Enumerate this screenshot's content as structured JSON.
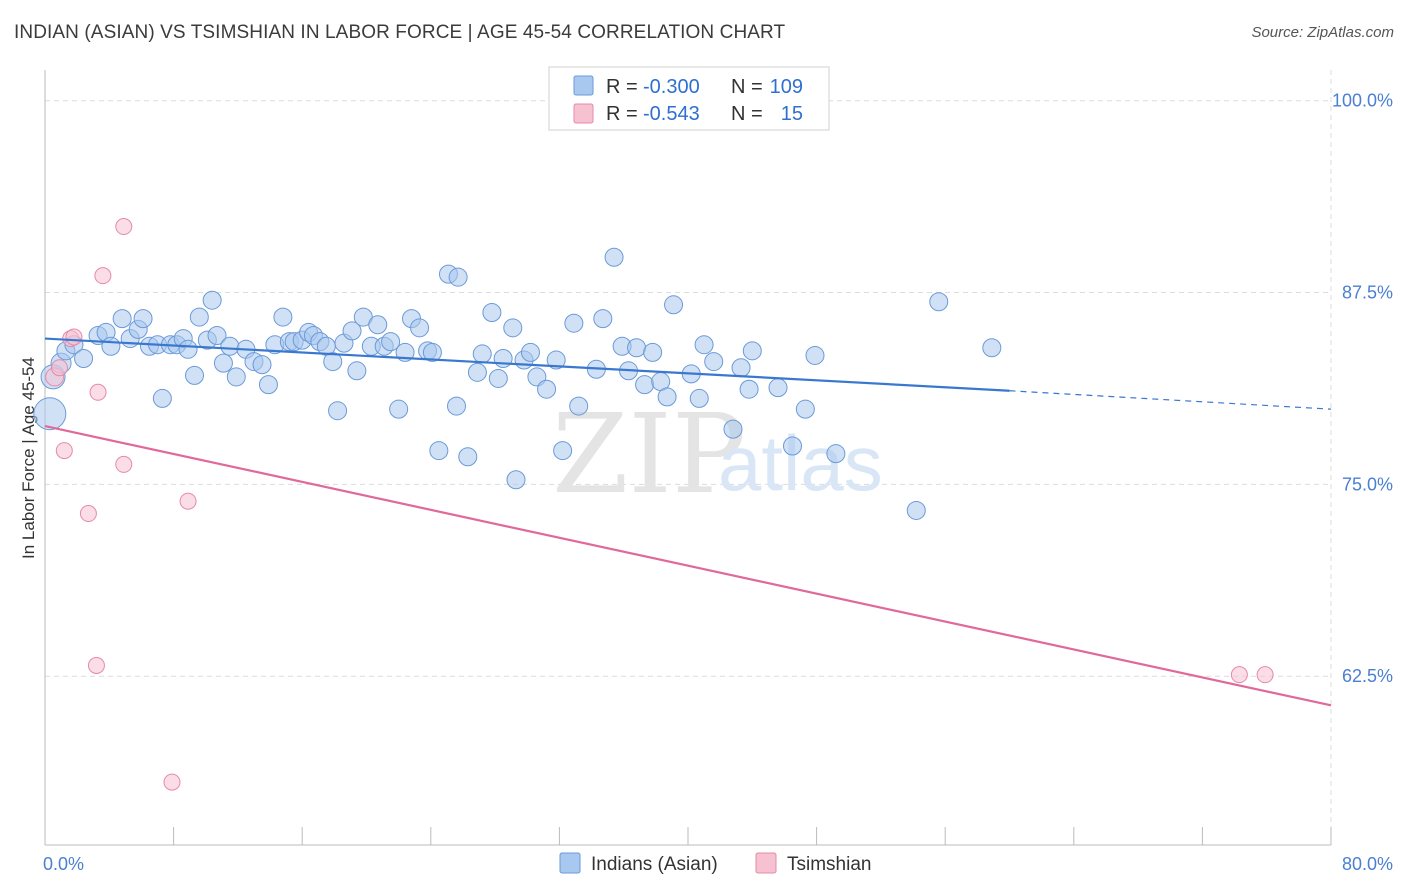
{
  "title": "INDIAN (ASIAN) VS TSIMSHIAN IN LABOR FORCE | AGE 45-54 CORRELATION CHART",
  "source": "Source: ZipAtlas.com",
  "colors": {
    "blue_fill": "#a9c8ef",
    "blue_stroke": "#6b9ad8",
    "blue_line": "#3a78d0",
    "pink_fill": "#f6c1d1",
    "pink_stroke": "#e58aa8",
    "pink_line": "#e0699a",
    "grid": "#dcdcdc",
    "tick_text": "#4a7fd1"
  },
  "legend": {
    "row1": {
      "r_label": "R = ",
      "r_value": "-0.300",
      "n_label": "N = ",
      "n_value": "109"
    },
    "row2": {
      "r_label": "R = ",
      "r_value": "-0.543",
      "n_label": "N = ",
      "n_value": "15"
    }
  },
  "watermark": {
    "zip": "ZIP",
    "atlas": "atlas"
  },
  "chart_data": {
    "type": "scatter",
    "title": "INDIAN (ASIAN) VS TSIMSHIAN IN LABOR FORCE | AGE 45-54 CORRELATION CHART",
    "xlabel": "",
    "ylabel": "In Labor Force | Age 45-54",
    "xlim": [
      0,
      80
    ],
    "ylim": [
      51.5,
      102
    ],
    "x_tick_labels": [
      {
        "value": 0,
        "label": "0.0%"
      },
      {
        "value": 80,
        "label": "80.0%"
      }
    ],
    "x_minor_ticks": [
      8,
      16,
      24,
      32,
      40,
      48,
      56,
      64,
      72,
      80
    ],
    "y_ticks": [
      {
        "value": 100,
        "label": "100.0%"
      },
      {
        "value": 87.5,
        "label": "87.5%"
      },
      {
        "value": 75,
        "label": "75.0%"
      },
      {
        "value": 62.5,
        "label": "62.5%"
      }
    ],
    "grid": true,
    "legend_position": "top-center",
    "series": [
      {
        "name": "Indians (Asian)",
        "color": "blue",
        "trend": {
          "x1": 0,
          "y1": 84.5,
          "x2": 60,
          "y2": 81.1,
          "dash_to_x": 80,
          "dash_to_y": 79.9
        },
        "points": [
          [
            0.3,
            79.6,
            16
          ],
          [
            0.5,
            82.0,
            12
          ],
          [
            1.0,
            82.9,
            10
          ],
          [
            1.3,
            83.7,
            9
          ],
          [
            1.8,
            84.1,
            9
          ],
          [
            2.4,
            83.2,
            9
          ],
          [
            3.3,
            84.7,
            9
          ],
          [
            3.8,
            84.9,
            9
          ],
          [
            4.1,
            84.0,
            9
          ],
          [
            4.8,
            85.8,
            9
          ],
          [
            5.3,
            84.5,
            9
          ],
          [
            5.8,
            85.1,
            9
          ],
          [
            6.1,
            85.8,
            9
          ],
          [
            6.5,
            84.0,
            9
          ],
          [
            7.0,
            84.1,
            9
          ],
          [
            7.3,
            80.6,
            9
          ],
          [
            7.8,
            84.1,
            9
          ],
          [
            8.2,
            84.1,
            9
          ],
          [
            8.6,
            84.5,
            9
          ],
          [
            8.9,
            83.8,
            9
          ],
          [
            9.3,
            82.1,
            9
          ],
          [
            9.6,
            85.9,
            9
          ],
          [
            10.1,
            84.4,
            9
          ],
          [
            10.4,
            87.0,
            9
          ],
          [
            10.7,
            84.7,
            9
          ],
          [
            11.1,
            82.9,
            9
          ],
          [
            11.5,
            84.0,
            9
          ],
          [
            11.9,
            82.0,
            9
          ],
          [
            12.5,
            83.8,
            9
          ],
          [
            13.0,
            83.0,
            9
          ],
          [
            13.5,
            82.8,
            9
          ],
          [
            13.9,
            81.5,
            9
          ],
          [
            14.3,
            84.1,
            9
          ],
          [
            14.8,
            85.9,
            9
          ],
          [
            15.2,
            84.3,
            9
          ],
          [
            15.5,
            84.3,
            9
          ],
          [
            16.0,
            84.4,
            9
          ],
          [
            16.4,
            84.9,
            9
          ],
          [
            16.7,
            84.7,
            9
          ],
          [
            17.1,
            84.3,
            9
          ],
          [
            17.5,
            84.0,
            9
          ],
          [
            17.9,
            83.0,
            9
          ],
          [
            18.2,
            79.8,
            9
          ],
          [
            18.6,
            84.2,
            9
          ],
          [
            19.1,
            85.0,
            9
          ],
          [
            19.4,
            82.4,
            9
          ],
          [
            19.8,
            85.9,
            9
          ],
          [
            20.3,
            84.0,
            9
          ],
          [
            20.7,
            85.4,
            9
          ],
          [
            21.1,
            84.0,
            9
          ],
          [
            21.5,
            84.3,
            9
          ],
          [
            22.0,
            79.9,
            9
          ],
          [
            22.4,
            83.6,
            9
          ],
          [
            22.8,
            85.8,
            9
          ],
          [
            23.3,
            85.2,
            9
          ],
          [
            23.8,
            83.7,
            9
          ],
          [
            24.1,
            83.6,
            9
          ],
          [
            24.5,
            77.2,
            9
          ],
          [
            25.1,
            88.7,
            9
          ],
          [
            25.6,
            80.1,
            9
          ],
          [
            25.7,
            88.5,
            9
          ],
          [
            26.3,
            76.8,
            9
          ],
          [
            26.9,
            82.3,
            9
          ],
          [
            27.2,
            83.5,
            9
          ],
          [
            27.8,
            86.2,
            9
          ],
          [
            28.2,
            81.9,
            9
          ],
          [
            28.5,
            83.2,
            9
          ],
          [
            29.1,
            85.2,
            9
          ],
          [
            29.3,
            75.3,
            9
          ],
          [
            29.8,
            83.1,
            9
          ],
          [
            30.2,
            83.6,
            9
          ],
          [
            30.6,
            82.0,
            9
          ],
          [
            31.2,
            81.2,
            9
          ],
          [
            31.8,
            83.1,
            9
          ],
          [
            32.2,
            77.2,
            9
          ],
          [
            32.9,
            85.5,
            9
          ],
          [
            33.2,
            80.1,
            9
          ],
          [
            34.3,
            82.5,
            9
          ],
          [
            34.7,
            85.8,
            9
          ],
          [
            35.4,
            89.8,
            9
          ],
          [
            35.9,
            84.0,
            9
          ],
          [
            36.3,
            82.4,
            9
          ],
          [
            36.8,
            83.9,
            9
          ],
          [
            37.3,
            81.5,
            9
          ],
          [
            37.8,
            83.6,
            9
          ],
          [
            38.3,
            81.7,
            9
          ],
          [
            38.7,
            80.7,
            9
          ],
          [
            39.1,
            86.7,
            9
          ],
          [
            40.2,
            82.2,
            9
          ],
          [
            40.7,
            80.6,
            9
          ],
          [
            41.0,
            84.1,
            9
          ],
          [
            41.6,
            83.0,
            9
          ],
          [
            42.8,
            78.6,
            9
          ],
          [
            43.3,
            82.6,
            9
          ],
          [
            43.8,
            81.2,
            9
          ],
          [
            44.0,
            83.7,
            9
          ],
          [
            45.6,
            81.3,
            9
          ],
          [
            46.5,
            77.5,
            9
          ],
          [
            47.3,
            79.9,
            9
          ],
          [
            47.9,
            83.4,
            9
          ],
          [
            49.2,
            77.0,
            9
          ],
          [
            54.2,
            73.3,
            9
          ],
          [
            55.6,
            86.9,
            9
          ],
          [
            58.9,
            83.9,
            9
          ]
        ]
      },
      {
        "name": "Tsimshian",
        "color": "pink",
        "trend": {
          "x1": 0,
          "y1": 78.8,
          "x2": 80,
          "y2": 60.6
        },
        "points": [
          [
            0.6,
            82.0,
            9
          ],
          [
            0.9,
            82.6,
            8
          ],
          [
            1.2,
            77.2,
            8
          ],
          [
            1.6,
            84.5,
            8
          ],
          [
            1.8,
            84.6,
            8
          ],
          [
            2.7,
            73.1,
            8
          ],
          [
            3.2,
            63.2,
            8
          ],
          [
            3.3,
            81.0,
            8
          ],
          [
            3.6,
            88.6,
            8
          ],
          [
            4.9,
            76.3,
            8
          ],
          [
            4.9,
            91.8,
            8
          ],
          [
            7.9,
            55.6,
            8
          ],
          [
            8.9,
            73.9,
            8
          ],
          [
            74.3,
            62.6,
            8
          ],
          [
            75.9,
            62.6,
            8
          ]
        ]
      }
    ]
  }
}
